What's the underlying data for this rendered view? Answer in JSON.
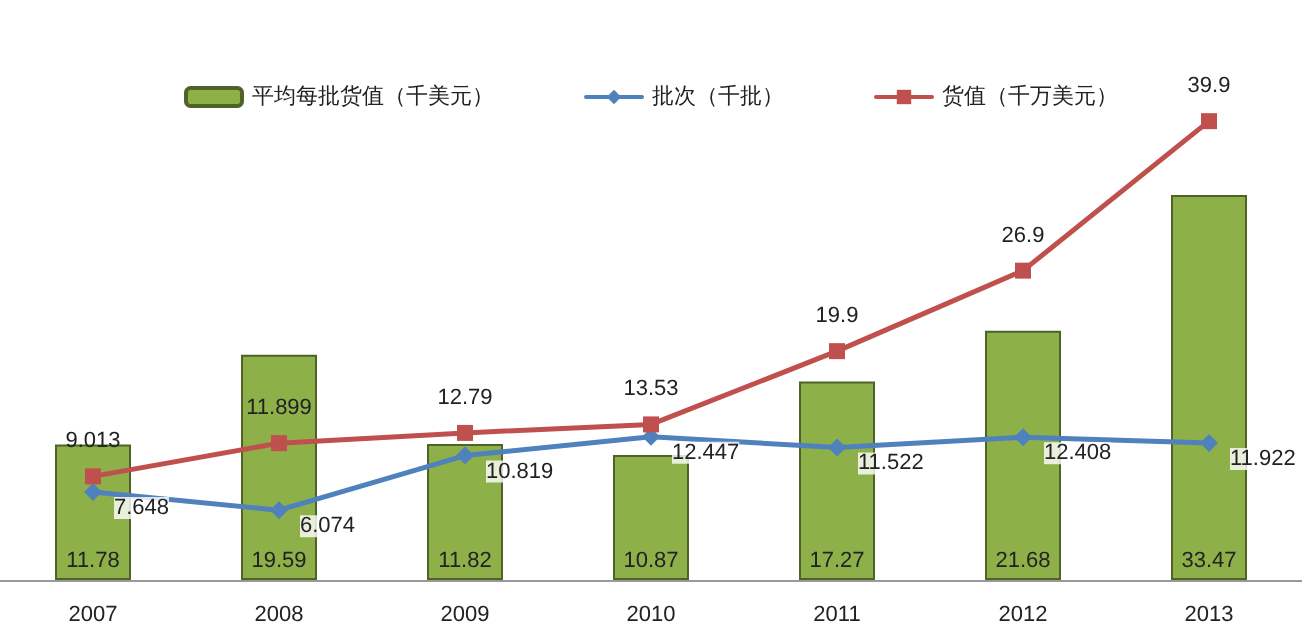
{
  "chart_data": {
    "type": "bar",
    "categories": [
      "2007",
      "2008",
      "2009",
      "2010",
      "2011",
      "2012",
      "2013"
    ],
    "series": [
      {
        "name": "平均每批货值（千美元）",
        "color": "#8db049",
        "values": [
          11.78,
          19.59,
          11.82,
          10.87,
          17.27,
          21.68,
          33.47
        ]
      },
      {
        "name": "批次（千批）",
        "type": "line",
        "color": "#4f81bd",
        "marker": "diamond",
        "values": [
          7.648,
          6.074,
          10.819,
          12.447,
          11.522,
          12.408,
          11.922
        ]
      },
      {
        "name": "货值（千万美元）",
        "type": "line",
        "color": "#c0504d",
        "marker": "square",
        "values": [
          9.013,
          11.899,
          12.79,
          13.53,
          19.9,
          26.9,
          39.9
        ]
      }
    ],
    "tick_labels": "x",
    "data_labels": true,
    "legend": "top"
  }
}
